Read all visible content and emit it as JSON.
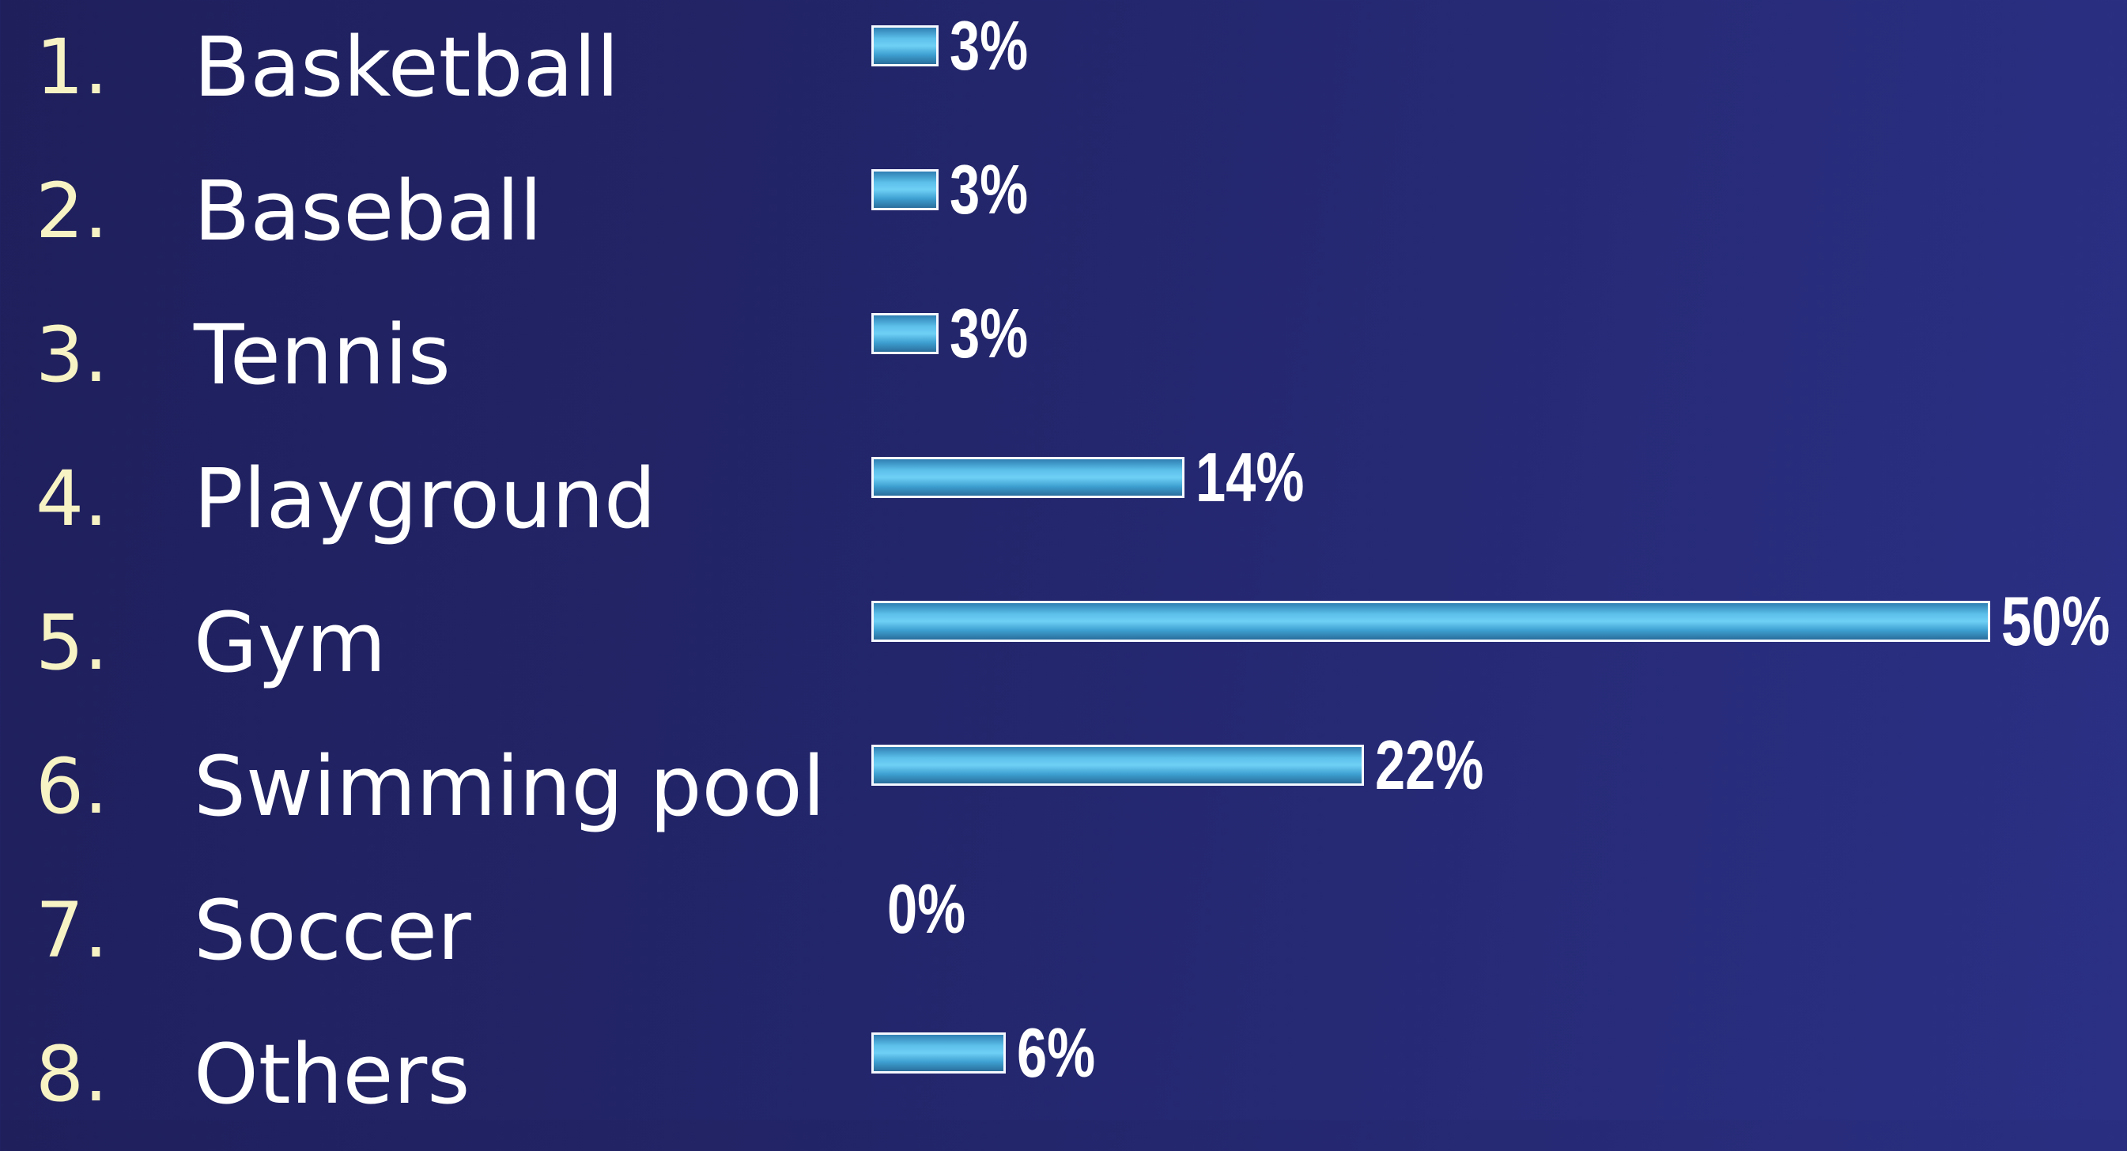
{
  "chart_data": {
    "type": "bar",
    "orientation": "horizontal",
    "title": "",
    "xlabel": "",
    "ylabel": "",
    "xlim": [
      0,
      50
    ],
    "grid": false,
    "categories": [
      {
        "number": "1.",
        "label": "Basketball"
      },
      {
        "number": "2.",
        "label": "Baseball"
      },
      {
        "number": "3.",
        "label": "Tennis"
      },
      {
        "number": "4.",
        "label": "Playground"
      },
      {
        "number": "5.",
        "label": "Gym"
      },
      {
        "number": "6.",
        "label": "Swimming pool"
      },
      {
        "number": "7.",
        "label": "Soccer"
      },
      {
        "number": "8.",
        "label": "Others"
      }
    ],
    "values": [
      3,
      3,
      3,
      14,
      50,
      22,
      0,
      6
    ],
    "value_labels": [
      "3%",
      "3%",
      "3%",
      "14%",
      "50%",
      "22%",
      "0%",
      "6%"
    ]
  },
  "colors": {
    "background": "#23266b",
    "bar_fill": "#5cc0ea",
    "bar_border": "#f4f8ff",
    "number_text": "#f7f3c4",
    "label_text": "#ffffff"
  }
}
